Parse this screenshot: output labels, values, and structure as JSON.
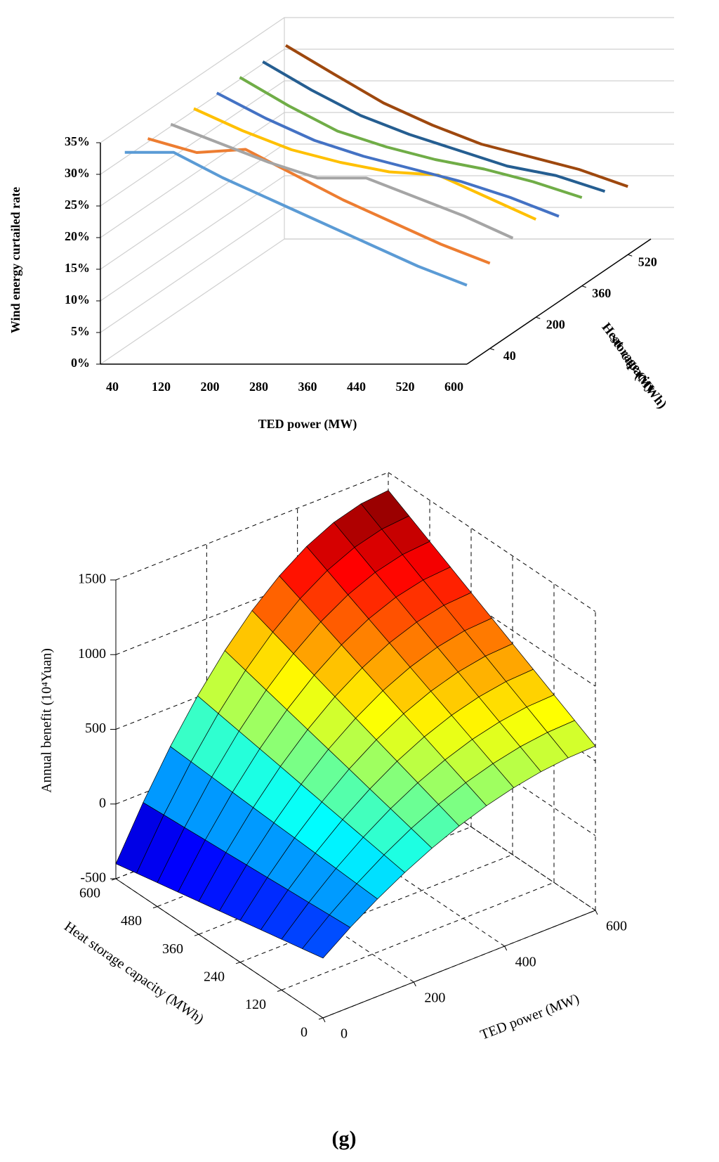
{
  "caption": "(g)",
  "chart_data": [
    {
      "type": "line3d",
      "ylabel": "Wind energy curtailed rate",
      "xlabel": "TED power (MW)",
      "zlabel": [
        "Heat",
        "storage",
        "capacity",
        "(MWh)"
      ],
      "categories": [
        "40",
        "120",
        "200",
        "280",
        "360",
        "440",
        "520",
        "600"
      ],
      "ylim": [
        0,
        35
      ],
      "yticks": [
        {
          "value": 0,
          "label": "0%"
        },
        {
          "value": 5,
          "label": "5%"
        },
        {
          "value": 10,
          "label": "10%"
        },
        {
          "value": 15,
          "label": "15%"
        },
        {
          "value": 20,
          "label": "20%"
        },
        {
          "value": 25,
          "label": "25%"
        },
        {
          "value": 30,
          "label": "30%"
        },
        {
          "value": 35,
          "label": "35%"
        }
      ],
      "zlim": [
        -40,
        600
      ],
      "zticks": [
        40,
        200,
        360,
        520
      ],
      "grid": true,
      "series": [
        {
          "z": 40,
          "color": "#5b9bd5",
          "values": [
            31,
            31,
            27,
            23.5,
            20,
            16.5,
            13,
            10
          ]
        },
        {
          "z": 120,
          "color": "#ed7d31",
          "values": [
            30.7,
            28.5,
            29,
            25,
            21,
            17.5,
            14,
            11
          ]
        },
        {
          "z": 200,
          "color": "#a5a5a5",
          "values": [
            30.5,
            27.5,
            24.5,
            22,
            22,
            19,
            16,
            12.5
          ]
        },
        {
          "z": 280,
          "color": "#ffc000",
          "values": [
            30.5,
            27,
            24,
            22,
            20.5,
            20,
            16.5,
            13
          ]
        },
        {
          "z": 360,
          "color": "#4472c4",
          "values": [
            30.5,
            26.5,
            23,
            20.5,
            18.5,
            16.5,
            14,
            11
          ]
        },
        {
          "z": 440,
          "color": "#70ad47",
          "values": [
            30.5,
            26,
            22,
            19.5,
            17.5,
            16,
            14,
            11.5
          ]
        },
        {
          "z": 520,
          "color": "#255e91",
          "values": [
            30.5,
            26,
            22,
            19,
            16.5,
            14,
            12.5,
            10
          ]
        },
        {
          "z": 600,
          "color": "#9e480e",
          "values": [
            30.6,
            26,
            21.5,
            18,
            15,
            13,
            11,
            8.3
          ]
        }
      ]
    },
    {
      "type": "surface",
      "xlabel": "TED power (MW)",
      "ylabel": "Heat storage capacity (MWh)",
      "zlabel": "Annual benefit (10⁴Yuan)",
      "colormap": "jet",
      "x": [
        0,
        60,
        120,
        180,
        240,
        300,
        360,
        420,
        480,
        540,
        600
      ],
      "y": [
        0,
        60,
        120,
        180,
        240,
        300,
        360,
        420,
        480,
        540,
        600
      ],
      "xlim": [
        0,
        600
      ],
      "xticks": [
        0,
        200,
        400,
        600
      ],
      "ylim": [
        0,
        600
      ],
      "yticks": [
        0,
        120,
        240,
        360,
        480,
        600
      ],
      "zlim": [
        -500,
        1500
      ],
      "zticks": [
        -500,
        0,
        500,
        1000,
        1500
      ],
      "grid": true,
      "z": [
        [
          -100,
          33,
          152,
          257,
          348,
          425,
          488,
          537,
          572,
          593,
          600
        ],
        [
          -130,
          24,
          161,
          282,
          387,
          476,
          549,
          605,
          646,
          670,
          678
        ],
        [
          -160,
          14,
          170,
          307,
          426,
          527,
          609,
          674,
          719,
          747,
          756
        ],
        [
          -190,
          5,
          179,
          332,
          465,
          578,
          670,
          742,
          793,
          824,
          834
        ],
        [
          -220,
          -5,
          188,
          357,
          505,
          629,
          731,
          810,
          867,
          901,
          912
        ],
        [
          -250,
          -14,
          196,
          382,
          544,
          680,
          792,
          878,
          940,
          978,
          990
        ],
        [
          -280,
          -24,
          205,
          408,
          583,
          731,
          852,
          947,
          1014,
          1055,
          1068
        ],
        [
          -310,
          -33,
          214,
          433,
          622,
          782,
          913,
          1015,
          1088,
          1131,
          1146
        ],
        [
          -340,
          -43,
          223,
          458,
          661,
          833,
          974,
          1083,
          1161,
          1208,
          1224
        ],
        [
          -370,
          -52,
          232,
          483,
          700,
          884,
          1035,
          1152,
          1235,
          1285,
          1302
        ],
        [
          -400,
          -62,
          241,
          508,
          739,
          935,
          1095,
          1220,
          1309,
          1362,
          1380
        ]
      ]
    }
  ]
}
